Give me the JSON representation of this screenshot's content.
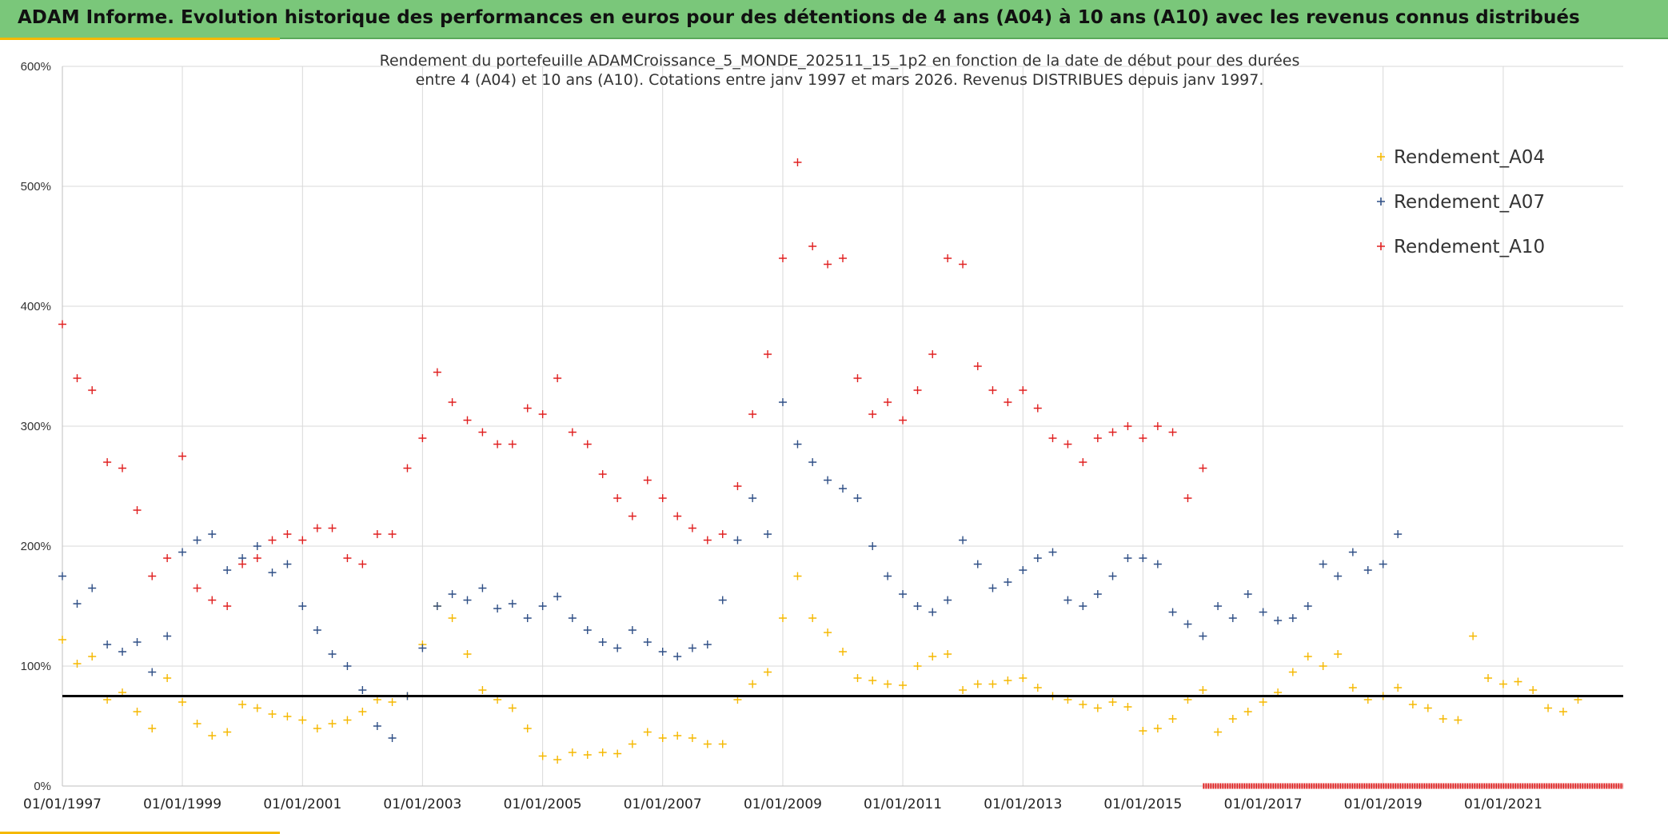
{
  "header": {
    "title": "ADAM Informe. Evolution historique des performances en euros pour des détentions de 4 ans (A04) à 10 ans (A10) avec les revenus connus distribués",
    "background_color": "#7ac77a",
    "accent_color": "#f5b800"
  },
  "chart_data": {
    "type": "scatter",
    "title": "Rendement du portefeuille ADAMCroissance_5_MONDE_202511_15_1p2  en fonction de la date de début pour des durées",
    "subtitle": "entre 4 (A04) et 10 ans (A10). Cotations entre janv 1997 et mars 2026. Revenus DISTRIBUES depuis janv 1997.",
    "xlabel": "",
    "ylabel": "",
    "x_type": "date",
    "xlim": [
      "1997-01-01",
      "2023-01-01"
    ],
    "ylim": [
      0,
      600
    ],
    "y_format": "percent",
    "y_ticks": [
      0,
      100,
      200,
      300,
      400,
      500,
      600
    ],
    "y_tick_labels": [
      "0%",
      "100%",
      "200%",
      "300%",
      "400%",
      "500%",
      "600%"
    ],
    "x_ticks": [
      "1997-01-01",
      "1999-01-01",
      "2001-01-01",
      "2003-01-01",
      "2005-01-01",
      "2007-01-01",
      "2009-01-01",
      "2011-01-01",
      "2013-01-01",
      "2015-01-01",
      "2017-01-01",
      "2019-01-01",
      "2021-01-01"
    ],
    "x_tick_labels": [
      "01/01/1997",
      "01/01/1999",
      "01/01/2001",
      "01/01/2003",
      "01/01/2005",
      "01/01/2007",
      "01/01/2009",
      "01/01/2011",
      "01/01/2013",
      "01/01/2015",
      "01/01/2017",
      "01/01/2019",
      "01/01/2021"
    ],
    "grid": true,
    "legend_position": "top-right",
    "marker": "+",
    "reference_line": {
      "y": 75,
      "color": "#000000"
    },
    "series": [
      {
        "name": "Rendement_A04",
        "color": "#f5b800",
        "x": [
          "1997-01-01",
          "1997-04-01",
          "1997-07-01",
          "1997-10-01",
          "1998-01-01",
          "1998-04-01",
          "1998-07-01",
          "1998-10-01",
          "1999-01-01",
          "1999-04-01",
          "1999-07-01",
          "1999-10-01",
          "2000-01-01",
          "2000-04-01",
          "2000-07-01",
          "2000-10-01",
          "2001-01-01",
          "2001-04-01",
          "2001-07-01",
          "2001-10-01",
          "2002-01-01",
          "2002-04-01",
          "2002-07-01",
          "2002-10-01",
          "2003-01-01",
          "2003-04-01",
          "2003-07-01",
          "2003-10-01",
          "2004-01-01",
          "2004-04-01",
          "2004-07-01",
          "2004-10-01",
          "2005-01-01",
          "2005-04-01",
          "2005-07-01",
          "2005-10-01",
          "2006-01-01",
          "2006-04-01",
          "2006-07-01",
          "2006-10-01",
          "2007-01-01",
          "2007-04-01",
          "2007-07-01",
          "2007-10-01",
          "2008-01-01",
          "2008-04-01",
          "2008-07-01",
          "2008-10-01",
          "2009-01-01",
          "2009-04-01",
          "2009-07-01",
          "2009-10-01",
          "2010-01-01",
          "2010-04-01",
          "2010-07-01",
          "2010-10-01",
          "2011-01-01",
          "2011-04-01",
          "2011-07-01",
          "2011-10-01",
          "2012-01-01",
          "2012-04-01",
          "2012-07-01",
          "2012-10-01",
          "2013-01-01",
          "2013-04-01",
          "2013-07-01",
          "2013-10-01",
          "2014-01-01",
          "2014-04-01",
          "2014-07-01",
          "2014-10-01",
          "2015-01-01",
          "2015-04-01",
          "2015-07-01",
          "2015-10-01",
          "2016-01-01",
          "2016-04-01",
          "2016-07-01",
          "2016-10-01",
          "2017-01-01",
          "2017-04-01",
          "2017-07-01",
          "2017-10-01",
          "2018-01-01",
          "2018-04-01",
          "2018-07-01",
          "2018-10-01",
          "2019-01-01",
          "2019-04-01",
          "2019-07-01",
          "2019-10-01",
          "2020-01-01",
          "2020-04-01",
          "2020-07-01",
          "2020-10-01",
          "2021-01-01",
          "2021-04-01",
          "2021-07-01",
          "2021-10-01",
          "2022-01-01",
          "2022-04-01"
        ],
        "y": [
          122,
          102,
          108,
          72,
          78,
          62,
          48,
          90,
          70,
          52,
          42,
          45,
          68,
          65,
          60,
          58,
          55,
          48,
          52,
          55,
          62,
          72,
          70,
          75,
          118,
          150,
          140,
          110,
          80,
          72,
          65,
          48,
          25,
          22,
          28,
          26,
          28,
          27,
          35,
          45,
          40,
          42,
          40,
          35,
          35,
          72,
          85,
          95,
          140,
          175,
          140,
          128,
          112,
          90,
          88,
          85,
          84,
          100,
          108,
          110,
          80,
          85,
          85,
          88,
          90,
          82,
          75,
          72,
          68,
          65,
          70,
          66,
          46,
          48,
          56,
          72,
          80,
          45,
          56,
          62,
          70,
          78,
          95,
          108,
          100,
          110,
          82,
          72,
          75,
          82,
          68,
          65,
          56,
          55,
          125,
          90,
          85,
          87,
          80,
          65,
          62,
          72
        ]
      },
      {
        "name": "Rendement_A07",
        "color": "#2f4f86",
        "x": [
          "1997-01-01",
          "1997-04-01",
          "1997-07-01",
          "1997-10-01",
          "1998-01-01",
          "1998-04-01",
          "1998-07-01",
          "1998-10-01",
          "1999-01-01",
          "1999-04-01",
          "1999-07-01",
          "1999-10-01",
          "2000-01-01",
          "2000-04-01",
          "2000-07-01",
          "2000-10-01",
          "2001-01-01",
          "2001-04-01",
          "2001-07-01",
          "2001-10-01",
          "2002-01-01",
          "2002-04-01",
          "2002-07-01",
          "2002-10-01",
          "2003-01-01",
          "2003-04-01",
          "2003-07-01",
          "2003-10-01",
          "2004-01-01",
          "2004-04-01",
          "2004-07-01",
          "2004-10-01",
          "2005-01-01",
          "2005-04-01",
          "2005-07-01",
          "2005-10-01",
          "2006-01-01",
          "2006-04-01",
          "2006-07-01",
          "2006-10-01",
          "2007-01-01",
          "2007-04-01",
          "2007-07-01",
          "2007-10-01",
          "2008-01-01",
          "2008-04-01",
          "2008-07-01",
          "2008-10-01",
          "2009-01-01",
          "2009-04-01",
          "2009-07-01",
          "2009-10-01",
          "2010-01-01",
          "2010-04-01",
          "2010-07-01",
          "2010-10-01",
          "2011-01-01",
          "2011-04-01",
          "2011-07-01",
          "2011-10-01",
          "2012-01-01",
          "2012-04-01",
          "2012-07-01",
          "2012-10-01",
          "2013-01-01",
          "2013-04-01",
          "2013-07-01",
          "2013-10-01",
          "2014-01-01",
          "2014-04-01",
          "2014-07-01",
          "2014-10-01",
          "2015-01-01",
          "2015-04-01",
          "2015-07-01",
          "2015-10-01",
          "2016-01-01",
          "2016-04-01",
          "2016-07-01",
          "2016-10-01",
          "2017-01-01",
          "2017-04-01",
          "2017-07-01",
          "2017-10-01",
          "2018-01-01",
          "2018-04-01",
          "2018-07-01",
          "2018-10-01",
          "2019-01-01",
          "2019-04-01"
        ],
        "y": [
          175,
          152,
          165,
          118,
          112,
          120,
          95,
          125,
          195,
          205,
          210,
          180,
          190,
          200,
          178,
          185,
          150,
          130,
          110,
          100,
          80,
          50,
          40,
          75,
          115,
          150,
          160,
          155,
          165,
          148,
          152,
          140,
          150,
          158,
          140,
          130,
          120,
          115,
          130,
          120,
          112,
          108,
          115,
          118,
          155,
          205,
          240,
          210,
          320,
          285,
          270,
          255,
          248,
          240,
          200,
          175,
          160,
          150,
          145,
          155,
          205,
          185,
          165,
          170,
          180,
          190,
          195,
          155,
          150,
          160,
          175,
          190,
          190,
          185,
          145,
          135,
          125,
          150,
          140,
          160,
          145,
          138,
          140,
          150,
          185,
          175,
          195,
          180,
          185,
          210
        ]
      },
      {
        "name": "Rendement_A10",
        "color": "#e02020",
        "x": [
          "1997-01-01",
          "1997-04-01",
          "1997-07-01",
          "1997-10-01",
          "1998-01-01",
          "1998-04-01",
          "1998-07-01",
          "1998-10-01",
          "1999-01-01",
          "1999-04-01",
          "1999-07-01",
          "1999-10-01",
          "2000-01-01",
          "2000-04-01",
          "2000-07-01",
          "2000-10-01",
          "2001-01-01",
          "2001-04-01",
          "2001-07-01",
          "2001-10-01",
          "2002-01-01",
          "2002-04-01",
          "2002-07-01",
          "2002-10-01",
          "2003-01-01",
          "2003-04-01",
          "2003-07-01",
          "2003-10-01",
          "2004-01-01",
          "2004-04-01",
          "2004-07-01",
          "2004-10-01",
          "2005-01-01",
          "2005-04-01",
          "2005-07-01",
          "2005-10-01",
          "2006-01-01",
          "2006-04-01",
          "2006-07-01",
          "2006-10-01",
          "2007-01-01",
          "2007-04-01",
          "2007-07-01",
          "2007-10-01",
          "2008-01-01",
          "2008-04-01",
          "2008-07-01",
          "2008-10-01",
          "2009-01-01",
          "2009-04-01",
          "2009-07-01",
          "2009-10-01",
          "2010-01-01",
          "2010-04-01",
          "2010-07-01",
          "2010-10-01",
          "2011-01-01",
          "2011-04-01",
          "2011-07-01",
          "2011-10-01",
          "2012-01-01",
          "2012-04-01",
          "2012-07-01",
          "2012-10-01",
          "2013-01-01",
          "2013-04-01",
          "2013-07-01",
          "2013-10-01",
          "2014-01-01",
          "2014-04-01",
          "2014-07-01",
          "2014-10-01",
          "2015-01-01",
          "2015-04-01",
          "2015-07-01",
          "2015-10-01",
          "2016-01-01"
        ],
        "y": [
          385,
          340,
          330,
          270,
          265,
          230,
          175,
          190,
          275,
          165,
          155,
          150,
          185,
          190,
          205,
          210,
          205,
          215,
          215,
          190,
          185,
          210,
          210,
          265,
          290,
          345,
          320,
          305,
          295,
          285,
          285,
          315,
          310,
          340,
          295,
          285,
          260,
          240,
          225,
          255,
          240,
          225,
          215,
          205,
          210,
          250,
          310,
          360,
          440,
          520,
          450,
          435,
          440,
          340,
          310,
          320,
          305,
          330,
          360,
          440,
          435,
          350,
          330,
          320,
          330,
          315,
          290,
          285,
          270,
          290,
          295,
          300,
          290,
          300,
          295,
          240,
          265
        ]
      }
    ],
    "marker_band": {
      "from": "2016-01-01",
      "to": "2023-01-01",
      "y": 0,
      "color": "#e02020"
    }
  }
}
